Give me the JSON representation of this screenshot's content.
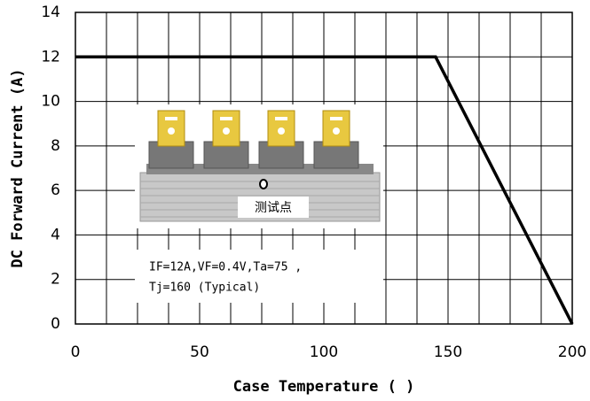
{
  "chart_data": {
    "type": "line",
    "x_label": "Case Temperature (   )",
    "y_label": "DC Forward Current (A)",
    "xlim": [
      0,
      200
    ],
    "xticks": [
      0,
      50,
      100,
      150,
      200
    ],
    "x_grid_ticks": [
      12.5,
      25,
      37.5,
      62.5,
      75,
      87.5,
      112.5,
      125,
      137.5,
      162.5,
      175,
      187.5
    ],
    "ylim": [
      0,
      14
    ],
    "yticks": [
      0,
      2,
      4,
      6,
      8,
      10,
      12,
      14
    ],
    "grid": true,
    "series": [
      {
        "x": [
          0,
          145,
          200
        ],
        "values": [
          12,
          12,
          0
        ],
        "color": "#000000"
      }
    ],
    "annotations": {
      "test_point": "测试点",
      "conditions_line1": "IF=12A,VF=0.4V,Ta=75  ,",
      "conditions_line2": "Tj=160   (Typical)"
    }
  }
}
